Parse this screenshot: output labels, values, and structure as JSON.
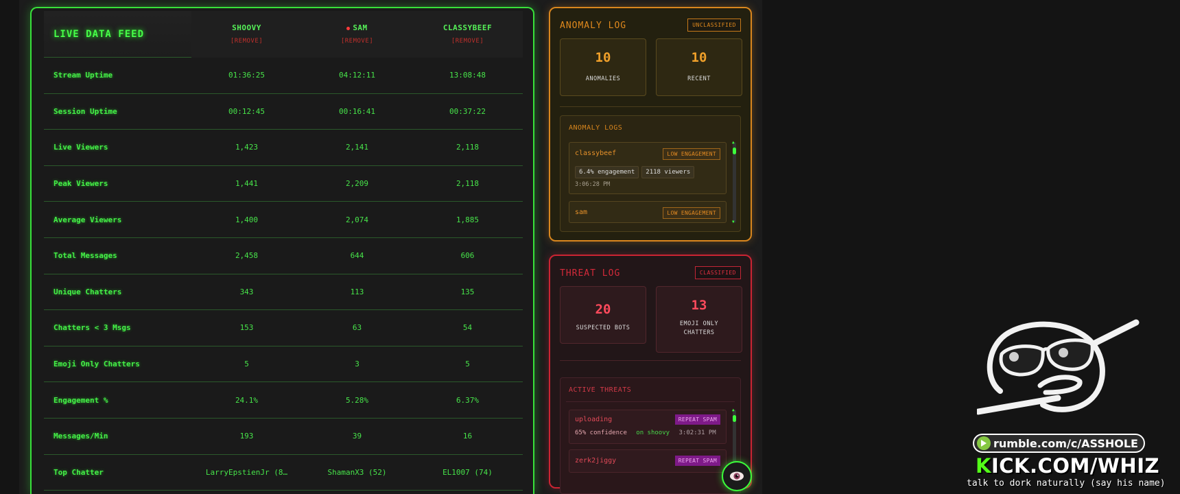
{
  "feed": {
    "title": "LIVE DATA FEED",
    "columns": [
      {
        "name": "SHOOVY",
        "remove": "[REMOVE]",
        "live": false
      },
      {
        "name": "SAM",
        "remove": "[REMOVE]",
        "live": true
      },
      {
        "name": "CLASSYBEEF",
        "remove": "[REMOVE]",
        "live": false
      }
    ],
    "rows": [
      {
        "label": "Stream Uptime",
        "values": [
          "01:36:25",
          "04:12:11",
          "13:08:48"
        ]
      },
      {
        "label": "Session Uptime",
        "values": [
          "00:12:45",
          "00:16:41",
          "00:37:22"
        ]
      },
      {
        "label": "Live Viewers",
        "values": [
          "1,423",
          "2,141",
          "2,118"
        ]
      },
      {
        "label": "Peak Viewers",
        "values": [
          "1,441",
          "2,209",
          "2,118"
        ]
      },
      {
        "label": "Average Viewers",
        "values": [
          "1,400",
          "2,074",
          "1,885"
        ]
      },
      {
        "label": "Total Messages",
        "values": [
          "2,458",
          "644",
          "606"
        ]
      },
      {
        "label": "Unique Chatters",
        "values": [
          "343",
          "113",
          "135"
        ]
      },
      {
        "label": "Chatters < 3 Msgs",
        "values": [
          "153",
          "63",
          "54"
        ]
      },
      {
        "label": "Emoji Only Chatters",
        "values": [
          "5",
          "3",
          "5"
        ]
      },
      {
        "label": "Engagement %",
        "values": [
          "24.1%",
          "5.28%",
          "6.37%"
        ]
      },
      {
        "label": "Messages/Min",
        "values": [
          "193",
          "39",
          "16"
        ]
      },
      {
        "label": "Top Chatter",
        "values": [
          "LarryEpstienJr (8…",
          "ShamanX3 (52)",
          "EL1007 (74)"
        ]
      }
    ]
  },
  "anomaly": {
    "title": "ANOMALY LOG",
    "badge": "UNCLASSIFIED",
    "stats": [
      {
        "value": "10",
        "label": "ANOMALIES"
      },
      {
        "value": "10",
        "label": "RECENT"
      }
    ],
    "logs_title": "ANOMALY LOGS",
    "entries": [
      {
        "user": "classybeef",
        "tag": "LOW ENGAGEMENT",
        "chips": [
          "6.4% engagement",
          "2118 viewers"
        ],
        "time": "3:06:28 PM"
      },
      {
        "user": "sam",
        "tag": "LOW ENGAGEMENT"
      }
    ]
  },
  "threat": {
    "title": "THREAT LOG",
    "badge": "CLASSIFIED",
    "stats": [
      {
        "value": "20",
        "label": "SUSPECTED BOTS"
      },
      {
        "value": "13",
        "label": "EMOJI ONLY CHATTERS"
      }
    ],
    "active_title": "ACTIVE THREATS",
    "entries": [
      {
        "user": "uploading",
        "tag": "REPEAT SPAM",
        "confidence": "65% confidence",
        "channel": "on shoovy",
        "time": "3:02:31 PM"
      },
      {
        "user": "zerk2jiggy",
        "tag": "REPEAT SPAM"
      }
    ]
  },
  "branding": {
    "rumble": "rumble.com/c/ASSHOLE",
    "kick_k": "K",
    "kick_rest": "ICK.COM/WHIZ",
    "tagline": "talk to dork naturally (say his name)"
  },
  "colors": {
    "feed_green": "#39ff3c",
    "anomaly_orange": "#d9861e",
    "threat_red": "#cc2433",
    "spam_tag": "#9b1ea8"
  },
  "icons": {
    "eye_button": "eye-icon",
    "mascot": "sunglasses-face-icon"
  }
}
